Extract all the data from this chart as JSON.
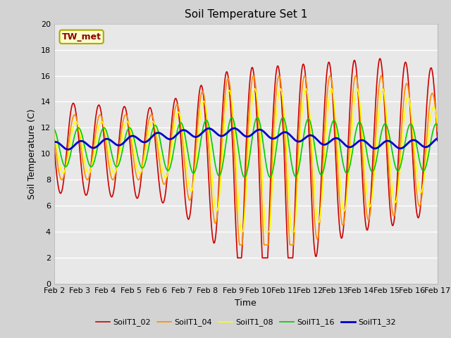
{
  "title": "Soil Temperature Set 1",
  "xlabel": "Time",
  "ylabel": "Soil Temperature (C)",
  "ylim": [
    0,
    20
  ],
  "xlim": [
    0,
    15
  ],
  "xtick_labels": [
    "Feb 2",
    "Feb 3",
    "Feb 4",
    "Feb 5",
    "Feb 6",
    "Feb 7",
    "Feb 8",
    "Feb 9",
    "Feb 10",
    "Feb 11",
    "Feb 12",
    "Feb 13",
    "Feb 14",
    "Feb 15",
    "Feb 16",
    "Feb 17"
  ],
  "xtick_positions": [
    0,
    1,
    2,
    3,
    4,
    5,
    6,
    7,
    8,
    9,
    10,
    11,
    12,
    13,
    14,
    15
  ],
  "annotation_text": "TW_met",
  "annotation_color": "#8B0000",
  "annotation_bg": "#FFFFCC",
  "annotation_border": "#AAAA00",
  "bg_color": "#D3D3D3",
  "plot_bg_color": "#E8E8E8",
  "grid_color": "#FFFFFF",
  "series": {
    "SoilT1_02": {
      "color": "#CC0000",
      "lw": 1.2
    },
    "SoilT1_04": {
      "color": "#FF8C00",
      "lw": 1.2
    },
    "SoilT1_08": {
      "color": "#FFFF00",
      "lw": 1.2
    },
    "SoilT1_16": {
      "color": "#00CC00",
      "lw": 1.2
    },
    "SoilT1_32": {
      "color": "#0000CC",
      "lw": 2.0
    }
  },
  "legend_order": [
    "SoilT1_02",
    "SoilT1_04",
    "SoilT1_08",
    "SoilT1_16",
    "SoilT1_32"
  ]
}
